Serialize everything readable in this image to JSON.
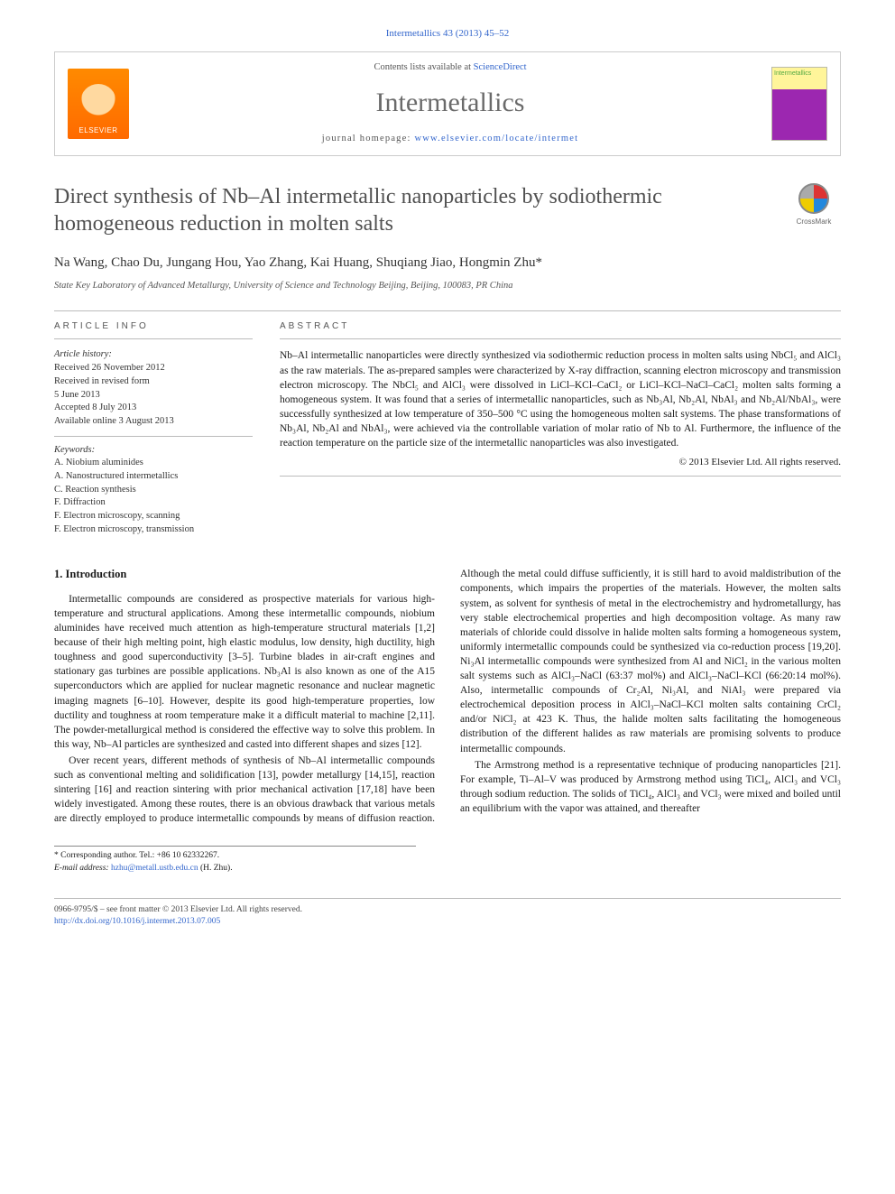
{
  "citation": "Intermetallics 43 (2013) 45–52",
  "header": {
    "contents_prefix": "Contents lists available at ",
    "contents_link": "ScienceDirect",
    "journal": "Intermetallics",
    "homepage_prefix": "journal homepage: ",
    "homepage_url": "www.elsevier.com/locate/intermet",
    "publisher_logo_text": "ELSEVIER",
    "cover_text": "Intermetallics"
  },
  "title": "Direct synthesis of Nb–Al intermetallic nanoparticles by sodiothermic homogeneous reduction in molten salts",
  "crossmark_label": "CrossMark",
  "authors": "Na Wang, Chao Du, Jungang Hou, Yao Zhang, Kai Huang, Shuqiang Jiao, Hongmin Zhu*",
  "affiliation": "State Key Laboratory of Advanced Metallurgy, University of Science and Technology Beijing, Beijing, 100083, PR China",
  "article_info": {
    "heading": "ARTICLE INFO",
    "history_label": "Article history:",
    "history": [
      "Received 26 November 2012",
      "Received in revised form",
      "5 June 2013",
      "Accepted 8 July 2013",
      "Available online 3 August 2013"
    ],
    "keywords_label": "Keywords:",
    "keywords": [
      "A. Niobium aluminides",
      "A. Nanostructured intermetallics",
      "C. Reaction synthesis",
      "F. Diffraction",
      "F. Electron microscopy, scanning",
      "F. Electron microscopy, transmission"
    ]
  },
  "abstract": {
    "heading": "ABSTRACT",
    "text": "Nb–Al intermetallic nanoparticles were directly synthesized via sodiothermic reduction process in molten salts using NbCl₅ and AlCl₃ as the raw materials. The as-prepared samples were characterized by X-ray diffraction, scanning electron microscopy and transmission electron microscopy. The NbCl₅ and AlCl₃ were dissolved in LiCl–KCl–CaCl₂ or LiCl–KCl–NaCl–CaCl₂ molten salts forming a homogeneous system. It was found that a series of intermetallic nanoparticles, such as Nb₃Al, Nb₂Al, NbAl₃ and Nb₂Al/NbAl₃, were successfully synthesized at low temperature of 350–500 °C using the homogeneous molten salt systems. The phase transformations of Nb₃Al, Nb₂Al and NbAl₃, were achieved via the controllable variation of molar ratio of Nb to Al. Furthermore, the influence of the reaction temperature on the particle size of the intermetallic nanoparticles was also investigated.",
    "copyright": "© 2013 Elsevier Ltd. All rights reserved."
  },
  "body": {
    "section_heading": "1. Introduction",
    "p1": "Intermetallic compounds are considered as prospective materials for various high-temperature and structural applications. Among these intermetallic compounds, niobium aluminides have received much attention as high-temperature structural materials [1,2] because of their high melting point, high elastic modulus, low density, high ductility, high toughness and good superconductivity [3–5]. Turbine blades in air-craft engines and stationary gas turbines are possible applications. Nb₃Al is also known as one of the A15 superconductors which are applied for nuclear magnetic resonance and nuclear magnetic imaging magnets [6–10]. However, despite its good high-temperature properties, low ductility and toughness at room temperature make it a difficult material to machine [2,11]. The powder-metallurgical method is considered the effective way to solve this problem. In this way, Nb–Al particles are synthesized and casted into different shapes and sizes [12].",
    "p2": "Over recent years, different methods of synthesis of Nb–Al intermetallic compounds such as conventional melting and solidification [13], powder metallurgy [14,15], reaction sintering [16] and reaction sintering with prior mechanical activation [17,18] have been widely investigated. Among these routes, there is an obvious drawback that various metals are directly employed to produce intermetallic compounds by means of diffusion reaction. Although the metal could diffuse sufficiently, it is still hard to avoid maldistribution of the components, which impairs the properties of the materials. However, the molten salts system, as solvent for synthesis of metal in the electrochemistry and hydrometallurgy, has very stable electrochemical properties and high decomposition voltage. As many raw materials of chloride could dissolve in halide molten salts forming a homogeneous system, uniformly intermetallic compounds could be synthesized via co-reduction process [19,20]. Ni₃Al intermetallic compounds were synthesized from Al and NiCl₂ in the various molten salt systems such as AlCl₃–NaCl (63:37 mol%) and AlCl₃–NaCl–KCl (66:20:14 mol%). Also, intermetallic compounds of Cr₂Al, Ni₃Al, and NiAl₃ were prepared via electrochemical deposition process in AlCl₃–NaCl–KCl molten salts containing CrCl₂ and/or NiCl₂ at 423 K. Thus, the halide molten salts facilitating the homogeneous distribution of the different halides as raw materials are promising solvents to produce intermetallic compounds.",
    "p3": "The Armstrong method is a representative technique of producing nanoparticles [21]. For example, Ti–Al–V was produced by Armstrong method using TiCl₄, AlCl₃ and VCl₃ through sodium reduction. The solids of TiCl₄, AlCl₃ and VCl₃ were mixed and boiled until an equilibrium with the vapor was attained, and thereafter"
  },
  "corresponding": {
    "label": "* Corresponding author. Tel.: +86 10 62332267.",
    "email_label": "E-mail address: ",
    "email": "hzhu@metall.ustb.edu.cn",
    "email_suffix": " (H. Zhu)."
  },
  "footer": {
    "issn_line": "0966-9795/$ – see front matter © 2013 Elsevier Ltd. All rights reserved.",
    "doi_url": "http://dx.doi.org/10.1016/j.intermet.2013.07.005"
  },
  "colors": {
    "link": "#3366cc",
    "title_gray": "#505050",
    "rule": "#bbbbbb"
  }
}
